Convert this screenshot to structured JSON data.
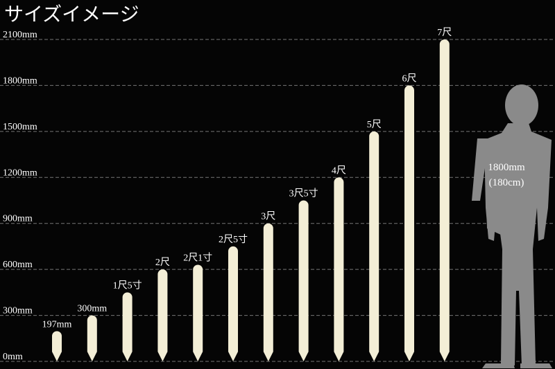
{
  "chart_data": {
    "type": "bar",
    "title": "サイズイメージ",
    "categories": [
      "197mm",
      "300mm",
      "1尺5寸",
      "2尺",
      "2尺1寸",
      "2尺5寸",
      "3尺",
      "3尺5寸",
      "4尺",
      "5尺",
      "6尺",
      "7尺"
    ],
    "values": [
      197,
      300,
      450,
      600,
      630,
      750,
      900,
      1050,
      1200,
      1500,
      1800,
      2100
    ],
    "color": "#f3eed6",
    "ylim": [
      0,
      2100
    ],
    "yticks": [
      {
        "value": 0,
        "label": "0mm"
      },
      {
        "value": 300,
        "label": "300mm"
      },
      {
        "value": 600,
        "label": "600mm"
      },
      {
        "value": 900,
        "label": "900mm"
      },
      {
        "value": 1200,
        "label": "1200mm"
      },
      {
        "value": 1500,
        "label": "1500mm"
      },
      {
        "value": 1800,
        "label": "1800mm"
      },
      {
        "value": 2100,
        "label": "2100mm"
      }
    ],
    "grid": true,
    "annotations": [
      "1800mm",
      "(180cm)"
    ]
  }
}
